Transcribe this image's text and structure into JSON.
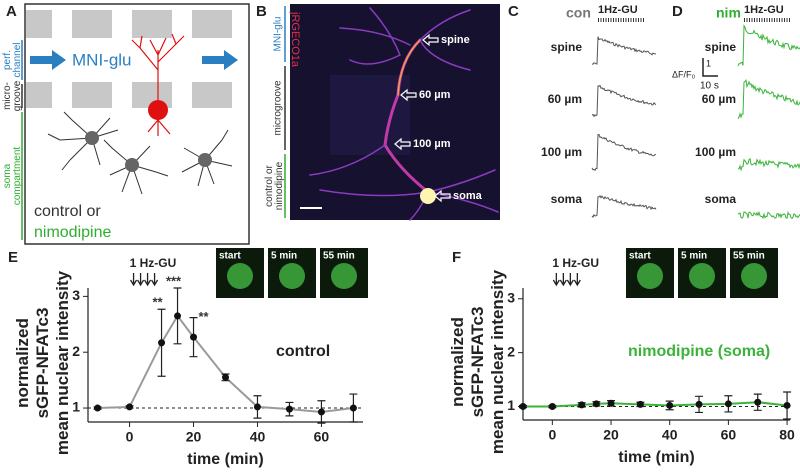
{
  "panels": {
    "A": {
      "letter": "A",
      "perf_channel": "perf.\nchannel",
      "stimulus": "MNI-glu",
      "microgroove": "micro-\ngroove",
      "soma_compartment": "soma\ncompartment",
      "control": "control",
      "or": "or",
      "nimodipine": "nimodipine"
    },
    "B": {
      "letter": "B",
      "indicator": "jRGECO1a",
      "stimulus": "MNI-glu",
      "microgroove": "microgroove",
      "treatment": "control or\nnimodipine",
      "sites": [
        "spine",
        "60 µm",
        "100 µm",
        "soma"
      ]
    },
    "C": {
      "letter": "C",
      "condition": "con",
      "stimulus": "1Hz-GU",
      "rows": [
        "spine",
        "60 µm",
        "100 µm",
        "soma"
      ]
    },
    "D": {
      "letter": "D",
      "condition": "nim",
      "stimulus": "1Hz-GU",
      "rows": [
        "spine",
        "60 µm",
        "100 µm",
        "soma"
      ],
      "scale_y_value": "1",
      "scale_y_unit": "ΔF/F₀",
      "scale_x": "10 s"
    }
  },
  "chart_data": [
    {
      "type": "line",
      "panel": "E",
      "ylabel": "normalized\nsGFP-NFATc3\nmean nuclear intensity",
      "xlabel": "time (min)",
      "stimulus": "1 Hz-GU",
      "insets": [
        "start",
        "5 min",
        "55 min"
      ],
      "annotation": "control",
      "x": [
        -10,
        0,
        10,
        15,
        20,
        30,
        40,
        50,
        60,
        70
      ],
      "series": [
        {
          "color": "#9a9a9a",
          "values": [
            1.0,
            1.02,
            2.17,
            2.65,
            2.27,
            1.55,
            1.02,
            0.98,
            0.93,
            1.0
          ],
          "errors": [
            0.02,
            0.02,
            0.6,
            0.5,
            0.35,
            0.06,
            0.2,
            0.12,
            0.2,
            0.25
          ]
        }
      ],
      "significance": [
        null,
        null,
        "**",
        "***",
        "**",
        null,
        null,
        null,
        null,
        null
      ],
      "reference_line": 1,
      "xlim": [
        -13,
        73
      ],
      "xticks": [
        0,
        20,
        40,
        60
      ],
      "ylim": [
        0.75,
        3.15
      ],
      "yticks": [
        1,
        2,
        3
      ]
    },
    {
      "type": "line",
      "panel": "F",
      "ylabel": "normalized\nsGFP-NFATc3\nmean nuclear intensity",
      "xlabel": "time (min)",
      "stimulus": "1 Hz-GU",
      "insets": [
        "start",
        "5 min",
        "55 min"
      ],
      "annotation": "nimodipine (soma)",
      "x": [
        -10,
        0,
        10,
        15,
        20,
        30,
        40,
        50,
        60,
        70,
        80
      ],
      "series": [
        {
          "color": "#3bb33b",
          "values": [
            1.0,
            1.0,
            1.03,
            1.05,
            1.06,
            1.04,
            1.02,
            1.04,
            1.05,
            1.08,
            1.02
          ],
          "errors": [
            0.02,
            0.02,
            0.04,
            0.04,
            0.05,
            0.04,
            0.08,
            0.15,
            0.15,
            0.15,
            0.25
          ]
        }
      ],
      "significance": [
        null,
        null,
        null,
        null,
        null,
        null,
        null,
        null,
        null,
        null,
        null
      ],
      "reference_line": 1,
      "xlim": [
        -10,
        81
      ],
      "xticks": [
        0,
        20,
        40,
        60,
        80
      ],
      "ylim": [
        0.75,
        3.2
      ],
      "yticks": [
        1,
        2,
        3
      ]
    }
  ]
}
